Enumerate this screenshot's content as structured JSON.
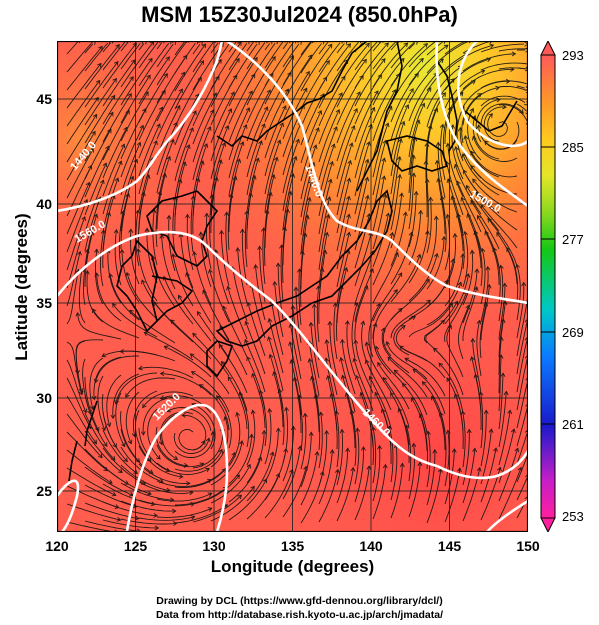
{
  "title": "MSM 15Z30Jul2024 (850.0hPa)",
  "axes": {
    "xlabel": "Longitude (degrees)",
    "ylabel": "Latitude  (degrees)",
    "xticks": [
      "120",
      "125",
      "130",
      "135",
      "140",
      "145",
      "150"
    ],
    "yticks": [
      "45",
      "40",
      "35",
      "30",
      "25"
    ]
  },
  "colorbar": {
    "ticks": [
      "293",
      "285",
      "277",
      "269",
      "261",
      "253"
    ],
    "colors": [
      "#ff1f9e",
      "#ff1f9e",
      "#1a1acc",
      "#0a7bff",
      "#00c8c8",
      "#14c814",
      "#8cd81e",
      "#e4e628",
      "#ffc81e",
      "#ff9628",
      "#ff6432",
      "#ff5a5a"
    ]
  },
  "contour_labels": [
    "1440.0",
    "1440.0",
    "1500.0",
    "1560.0",
    "1520.0",
    "1460.0"
  ],
  "credits": {
    "line1": "Drawing by DCL (https://www.gfd-dennou.org/library/dcl/)",
    "line2": "Data from http://database.rish.kyoto-u.ac.jp/arch/jmadata/"
  }
}
